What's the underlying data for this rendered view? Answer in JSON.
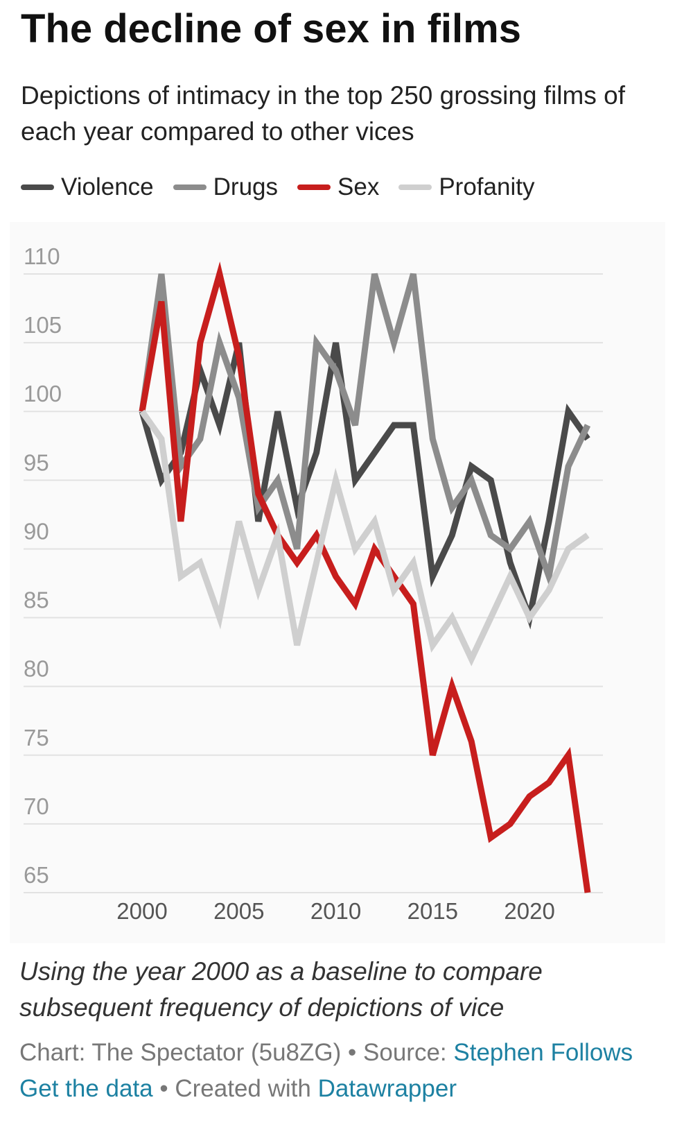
{
  "chart_data": {
    "type": "line",
    "title": "The decline of sex in films",
    "subtitle": "Depictions of intimacy in the top 250 grossing films of each year compared to other vices",
    "note": "Using the year 2000 as a baseline to compare subsequent frequency of depictions of vice",
    "x": [
      2000,
      2001,
      2002,
      2003,
      2004,
      2005,
      2006,
      2007,
      2008,
      2009,
      2010,
      2011,
      2012,
      2013,
      2014,
      2015,
      2016,
      2017,
      2018,
      2019,
      2020,
      2021,
      2022,
      2023
    ],
    "xlim": [
      2000,
      2023
    ],
    "xticks": [
      2000,
      2005,
      2010,
      2015,
      2020
    ],
    "ylim": [
      65,
      110
    ],
    "yticks": [
      65,
      70,
      75,
      80,
      85,
      90,
      95,
      100,
      105,
      110
    ],
    "grid": true,
    "series": [
      {
        "name": "Violence",
        "color": "#4a4a4a",
        "values": [
          100,
          95,
          97,
          103,
          99,
          105,
          92,
          100,
          93,
          97,
          105,
          95,
          97,
          99,
          99,
          88,
          91,
          96,
          95,
          89,
          85,
          92,
          100,
          98
        ]
      },
      {
        "name": "Drugs",
        "color": "#8c8c8c",
        "values": [
          100,
          110,
          96,
          98,
          105,
          101,
          93,
          95,
          90,
          105,
          103,
          99,
          110,
          105,
          110,
          98,
          93,
          95,
          91,
          90,
          92,
          88,
          96,
          99
        ]
      },
      {
        "name": "Sex",
        "color": "#c71e1d",
        "values": [
          100,
          108,
          92,
          105,
          110,
          104,
          94,
          91,
          89,
          91,
          88,
          86,
          90,
          88,
          86,
          75,
          80,
          76,
          69,
          70,
          72,
          73,
          75,
          65
        ]
      },
      {
        "name": "Profanity",
        "color": "#cfcfcf",
        "values": [
          100,
          98,
          88,
          89,
          85,
          92,
          87,
          91,
          83,
          89,
          95,
          90,
          92,
          87,
          89,
          83,
          85,
          82,
          85,
          88,
          85,
          87,
          90,
          91
        ]
      }
    ]
  },
  "footer": {
    "chart": "Chart: The Spectator (5u8ZG)",
    "separator": "•",
    "source": "Source:",
    "source_link": "Stephen Follows",
    "get_data": "Get the data",
    "created": "Created with",
    "tool": "Datawrapper"
  }
}
